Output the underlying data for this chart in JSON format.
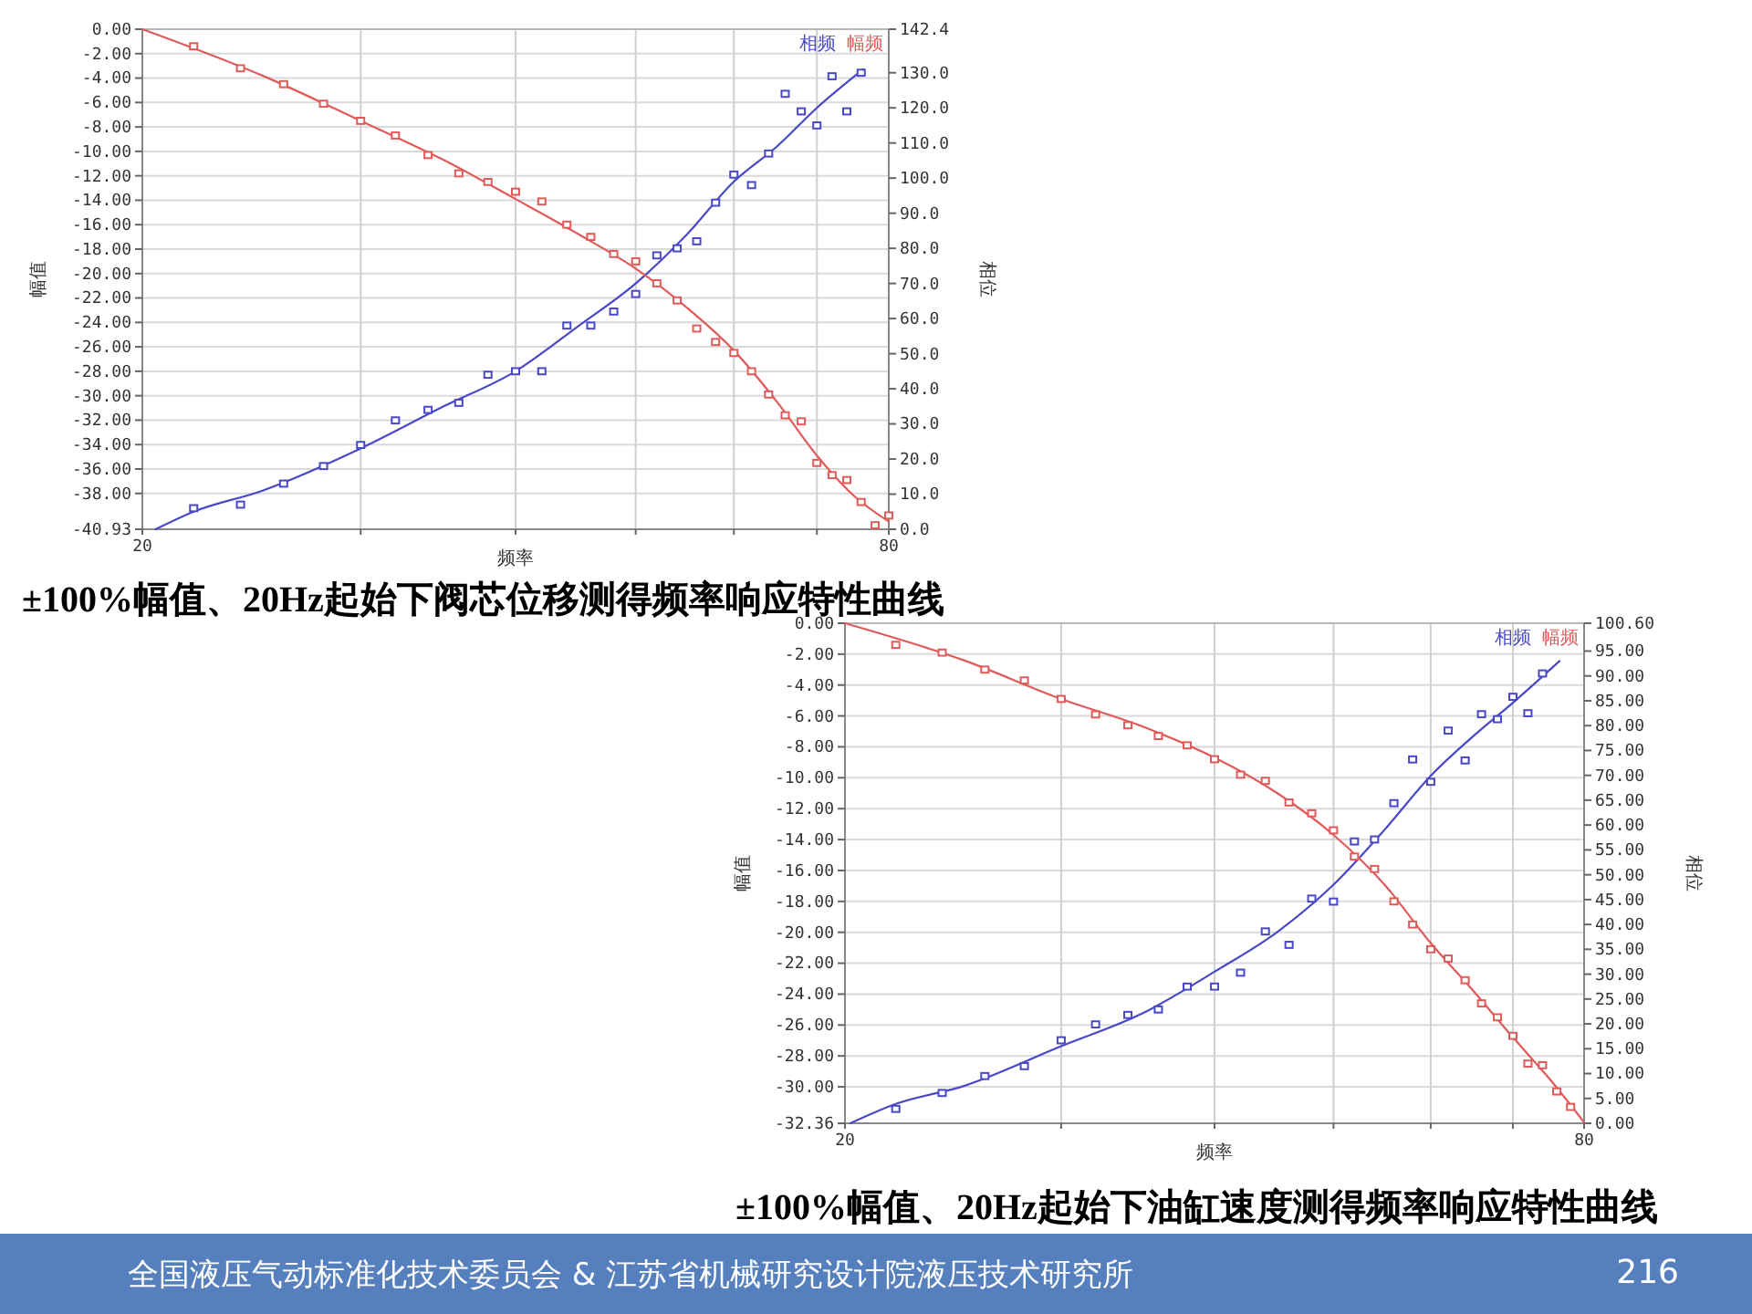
{
  "chart_data": [
    {
      "type": "line",
      "title": "±100%幅值、20Hz起始下阀芯位移测得频率响应特性曲线",
      "xlabel": "频率",
      "ylabel": "幅值",
      "y2label": "相位",
      "log": "x",
      "xlim": [
        20,
        80
      ],
      "xticks": [
        {
          "value": 20,
          "label": "20"
        },
        {
          "value": 30,
          "label": null
        },
        {
          "value": 40,
          "label": null
        },
        {
          "value": 50,
          "label": null
        },
        {
          "value": 60,
          "label": null
        },
        {
          "value": 70,
          "label": null
        },
        {
          "value": 80,
          "label": "80"
        }
      ],
      "ylim": [
        -40.93,
        0
      ],
      "yticks": [
        {
          "value": 0,
          "label": "0.00"
        },
        {
          "value": -2,
          "label": "-2.00"
        },
        {
          "value": -4,
          "label": "-4.00"
        },
        {
          "value": -6,
          "label": "-6.00"
        },
        {
          "value": -8,
          "label": "-8.00"
        },
        {
          "value": -10,
          "label": "-10.00"
        },
        {
          "value": -12,
          "label": "-12.00"
        },
        {
          "value": -14,
          "label": "-14.00"
        },
        {
          "value": -16,
          "label": "-16.00"
        },
        {
          "value": -18,
          "label": "-18.00"
        },
        {
          "value": -20,
          "label": "-20.00"
        },
        {
          "value": -22,
          "label": "-22.00"
        },
        {
          "value": -24,
          "label": "-24.00"
        },
        {
          "value": -26,
          "label": "-26.00"
        },
        {
          "value": -28,
          "label": "-28.00"
        },
        {
          "value": -30,
          "label": "-30.00"
        },
        {
          "value": -32,
          "label": "-32.00"
        },
        {
          "value": -34,
          "label": "-34.00"
        },
        {
          "value": -36,
          "label": "-36.00"
        },
        {
          "value": -38,
          "label": "-38.00"
        },
        {
          "value": -40.93,
          "label": "-40.93"
        }
      ],
      "y2lim": [
        0,
        142.4
      ],
      "y2ticks": [
        {
          "value": 0,
          "label": "0.0"
        },
        {
          "value": 10,
          "label": "10.0"
        },
        {
          "value": 20,
          "label": "20.0"
        },
        {
          "value": 30,
          "label": "30.0"
        },
        {
          "value": 40,
          "label": "40.0"
        },
        {
          "value": 50,
          "label": "50.0"
        },
        {
          "value": 60,
          "label": "60.0"
        },
        {
          "value": 70,
          "label": "70.0"
        },
        {
          "value": 80,
          "label": "80.0"
        },
        {
          "value": 90,
          "label": "90.0"
        },
        {
          "value": 100,
          "label": "100.0"
        },
        {
          "value": 110,
          "label": "110.0"
        },
        {
          "value": 120,
          "label": "120.0"
        },
        {
          "value": 130,
          "label": "130.0"
        },
        {
          "value": 142.4,
          "label": "142.4"
        }
      ],
      "grid": true,
      "legend": "top right",
      "series": [
        {
          "name": "相频",
          "axis": "y2",
          "color": "#4848c8",
          "marker": "none",
          "x": [
            20.5,
            22,
            25,
            30,
            35,
            40,
            45,
            50,
            55,
            60,
            65,
            70,
            76.3
          ],
          "values": [
            0,
            5,
            11,
            23,
            35,
            45,
            58,
            70,
            84,
            99,
            109,
            120,
            131
          ]
        },
        {
          "name": "幅频",
          "color": "#e05a5a",
          "marker": "none",
          "x": [
            20,
            25,
            30,
            35,
            40,
            45,
            50,
            55,
            60,
            65,
            70,
            75,
            80
          ],
          "values": [
            0,
            -3.8,
            -7.5,
            -10.7,
            -13.9,
            -16.8,
            -19.6,
            -22.8,
            -26.3,
            -30.5,
            -34.9,
            -38.2,
            -40.3
          ]
        },
        {
          "type": "scatter",
          "axis": "y2",
          "color": "#4848c8",
          "marker": "square",
          "x": [
            22,
            24,
            26,
            28,
            30,
            32,
            34,
            36,
            38,
            40,
            42,
            44,
            46,
            48,
            50,
            52,
            54,
            56,
            58,
            60,
            62,
            64,
            66,
            68,
            70,
            72,
            74,
            76
          ],
          "values": [
            6,
            7,
            13,
            18,
            24,
            31,
            34,
            36,
            44,
            45,
            45,
            58,
            58,
            62,
            67,
            78,
            80,
            82,
            93,
            101,
            98,
            107,
            124,
            119,
            115,
            129,
            119,
            130
          ]
        },
        {
          "type": "scatter",
          "color": "#e05a5a",
          "marker": "square",
          "x": [
            22,
            24,
            26,
            28,
            30,
            32,
            34,
            36,
            38,
            40,
            42,
            44,
            46,
            48,
            50,
            52,
            54,
            56,
            58,
            60,
            62,
            64,
            66,
            68,
            70,
            72,
            74,
            76,
            78,
            80
          ],
          "values": [
            -1.4,
            -3.2,
            -4.5,
            -6.1,
            -7.5,
            -8.7,
            -10.3,
            -11.8,
            -12.5,
            -13.3,
            -14.1,
            -16.0,
            -17.0,
            -18.4,
            -19.0,
            -20.8,
            -22.2,
            -24.5,
            -25.6,
            -26.5,
            -28.0,
            -29.9,
            -31.6,
            -32.1,
            -35.5,
            -36.5,
            -36.9,
            -38.7,
            -40.6,
            -39.8
          ]
        }
      ]
    },
    {
      "type": "line",
      "title": "±100%幅值、20Hz起始下油缸速度测得频率响应特性曲线",
      "xlabel": "频率",
      "ylabel": "幅值",
      "y2label": "相位",
      "log": "x",
      "xlim": [
        20,
        80
      ],
      "xticks": [
        {
          "value": 20,
          "label": "20"
        },
        {
          "value": 30,
          "label": null
        },
        {
          "value": 40,
          "label": null
        },
        {
          "value": 50,
          "label": null
        },
        {
          "value": 60,
          "label": null
        },
        {
          "value": 70,
          "label": null
        },
        {
          "value": 80,
          "label": "80"
        }
      ],
      "ylim": [
        -32.36,
        0
      ],
      "yticks": [
        {
          "value": 0,
          "label": "0.00"
        },
        {
          "value": -2,
          "label": "-2.00"
        },
        {
          "value": -4,
          "label": "-4.00"
        },
        {
          "value": -6,
          "label": "-6.00"
        },
        {
          "value": -8,
          "label": "-8.00"
        },
        {
          "value": -10,
          "label": "-10.00"
        },
        {
          "value": -12,
          "label": "-12.00"
        },
        {
          "value": -14,
          "label": "-14.00"
        },
        {
          "value": -16,
          "label": "-16.00"
        },
        {
          "value": -18,
          "label": "-18.00"
        },
        {
          "value": -20,
          "label": "-20.00"
        },
        {
          "value": -22,
          "label": "-22.00"
        },
        {
          "value": -24,
          "label": "-24.00"
        },
        {
          "value": -26,
          "label": "-26.00"
        },
        {
          "value": -28,
          "label": "-28.00"
        },
        {
          "value": -30,
          "label": "-30.00"
        },
        {
          "value": -32.36,
          "label": "-32.36"
        }
      ],
      "y2lim": [
        0,
        100.6
      ],
      "y2ticks": [
        {
          "value": 0,
          "label": "0.00"
        },
        {
          "value": 5,
          "label": "5.00"
        },
        {
          "value": 10,
          "label": "10.00"
        },
        {
          "value": 15,
          "label": "15.00"
        },
        {
          "value": 20,
          "label": "20.00"
        },
        {
          "value": 25,
          "label": "25.00"
        },
        {
          "value": 30,
          "label": "30.00"
        },
        {
          "value": 35,
          "label": "35.00"
        },
        {
          "value": 40,
          "label": "40.00"
        },
        {
          "value": 45,
          "label": "45.00"
        },
        {
          "value": 50,
          "label": "50.00"
        },
        {
          "value": 55,
          "label": "55.00"
        },
        {
          "value": 60,
          "label": "60.00"
        },
        {
          "value": 65,
          "label": "65.00"
        },
        {
          "value": 70,
          "label": "70.00"
        },
        {
          "value": 75,
          "label": "75.00"
        },
        {
          "value": 80,
          "label": "80.00"
        },
        {
          "value": 85,
          "label": "85.00"
        },
        {
          "value": 90,
          "label": "90.00"
        },
        {
          "value": 95,
          "label": "95.00"
        },
        {
          "value": 100.6,
          "label": "100.60"
        }
      ],
      "grid": true,
      "legend": "top right",
      "series": [
        {
          "name": "相频",
          "axis": "y2",
          "color": "#4848c8",
          "marker": "none",
          "x": [
            20.2,
            22,
            25,
            30,
            35,
            40,
            45,
            50,
            55,
            60,
            65,
            70,
            76.4
          ],
          "values": [
            0,
            3.9,
            7.5,
            15.5,
            22.2,
            30.5,
            38.5,
            48,
            59,
            69.9,
            77.9,
            84.6,
            93.0
          ]
        },
        {
          "name": "幅频",
          "color": "#e05a5a",
          "marker": "none",
          "x": [
            20,
            25,
            30,
            35,
            40,
            45,
            50,
            55,
            60,
            65,
            70,
            75,
            80
          ],
          "values": [
            0,
            -2.4,
            -4.9,
            -6.7,
            -8.7,
            -11.0,
            -13.7,
            -16.9,
            -20.7,
            -23.8,
            -26.8,
            -29.5,
            -32.3
          ]
        },
        {
          "type": "scatter",
          "axis": "y2",
          "color": "#4848c8",
          "marker": "square",
          "x": [
            22,
            24,
            26,
            28,
            30,
            32,
            34,
            36,
            38,
            40,
            42,
            44,
            46,
            48,
            50,
            52,
            54,
            56,
            58,
            60,
            62,
            64,
            66,
            68,
            70,
            72,
            74
          ],
          "values": [
            2.9,
            6.1,
            9.5,
            11.5,
            16.7,
            19.9,
            21.8,
            22.9,
            27.5,
            27.5,
            30.3,
            38.6,
            35.9,
            45.2,
            44.6,
            56.7,
            57.1,
            64.4,
            73.2,
            68.7,
            79.0,
            73.0,
            82.3,
            81.3,
            85.8,
            82.5,
            90.5
          ]
        },
        {
          "type": "scatter",
          "color": "#e05a5a",
          "marker": "square",
          "x": [
            22,
            24,
            26,
            28,
            30,
            32,
            34,
            36,
            38,
            40,
            42,
            44,
            46,
            48,
            50,
            52,
            54,
            56,
            58,
            60,
            62,
            64,
            66,
            68,
            70,
            72,
            74,
            76,
            78
          ],
          "values": [
            -1.4,
            -1.9,
            -3.0,
            -3.7,
            -4.9,
            -5.9,
            -6.6,
            -7.3,
            -7.9,
            -8.8,
            -9.8,
            -10.2,
            -11.6,
            -12.3,
            -13.4,
            -15.1,
            -15.9,
            -18.0,
            -19.5,
            -21.1,
            -21.7,
            -23.1,
            -24.6,
            -25.5,
            -26.7,
            -28.5,
            -28.6,
            -30.3,
            -31.3
          ]
        }
      ],
      "annotations": [
        "全国液压气动标准化技术委员会 & 江苏省机械研究设计院液压技术研究所",
        "216"
      ]
    }
  ]
}
